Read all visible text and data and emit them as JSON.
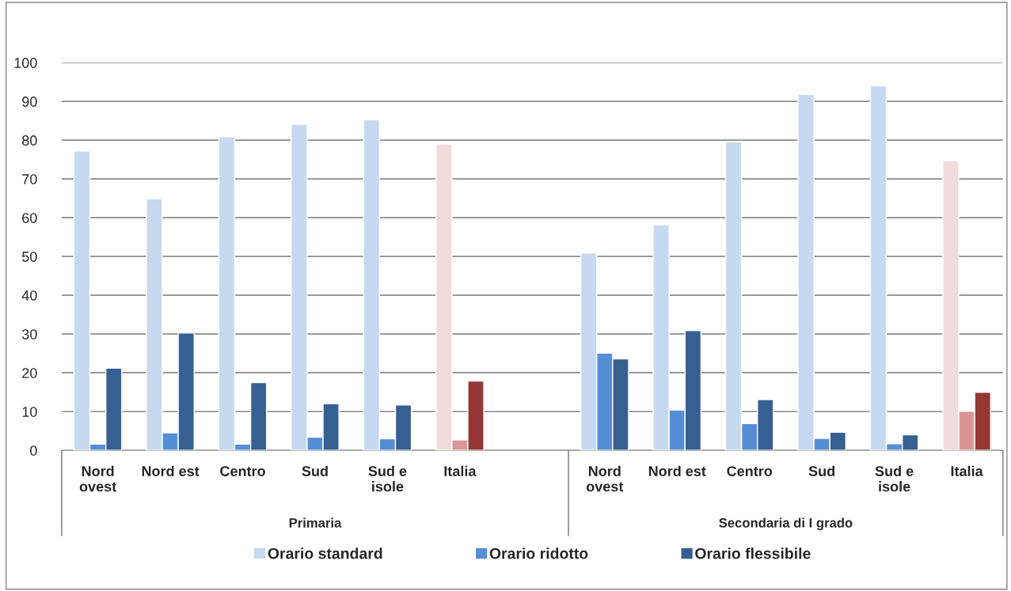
{
  "chart_data": {
    "type": "bar",
    "categories": [
      "Nord ovest",
      "Nord est",
      "Centro",
      "Sud",
      "Sud e isole",
      "Italia",
      null,
      "Nord ovest",
      "Nord est",
      "Centro",
      "Sud",
      "Sud e isole",
      "Italia"
    ],
    "series": [
      {
        "name": "Orario standard",
        "color": "#c6d9f1",
        "colors": [
          "#c6d9f1",
          "#c6d9f1",
          "#c6d9f1",
          "#c6d9f1",
          "#c6d9f1",
          "#f2dcdb",
          null,
          "#c6d9f1",
          "#c6d9f1",
          "#c6d9f1",
          "#c6d9f1",
          "#c6d9f1",
          "#f2dcdb"
        ],
        "values": [
          77.2,
          64.9,
          80.9,
          84.1,
          85.3,
          79.0,
          null,
          50.9,
          58.2,
          79.6,
          91.8,
          94.0,
          74.7
        ]
      },
      {
        "name": "Orario ridotto",
        "color": "#558ed5",
        "colors": [
          "#558ed5",
          "#558ed5",
          "#558ed5",
          "#558ed5",
          "#558ed5",
          "#d99694",
          null,
          "#558ed5",
          "#558ed5",
          "#558ed5",
          "#558ed5",
          "#558ed5",
          "#d99694"
        ],
        "values": [
          1.6,
          4.5,
          1.6,
          3.4,
          3.0,
          2.7,
          null,
          25.1,
          10.4,
          6.9,
          3.1,
          1.7,
          10.1
        ]
      },
      {
        "name": "Orario flessibile",
        "color": "#366092",
        "colors": [
          "#366092",
          "#366092",
          "#366092",
          "#366092",
          "#366092",
          "#953735",
          null,
          "#366092",
          "#366092",
          "#366092",
          "#366092",
          "#366092",
          "#953735"
        ],
        "values": [
          21.2,
          30.3,
          17.5,
          12.0,
          11.7,
          17.9,
          null,
          23.6,
          30.9,
          13.1,
          4.7,
          4.0,
          15.0
        ]
      }
    ],
    "annotations": [
      "Primaria",
      "Secondaria di I grado"
    ],
    "ylim": [
      0,
      100
    ],
    "yticks": [
      0,
      10,
      20,
      30,
      40,
      50,
      60,
      70,
      80,
      90,
      100
    ],
    "grid": "y",
    "legend": "bottom"
  }
}
